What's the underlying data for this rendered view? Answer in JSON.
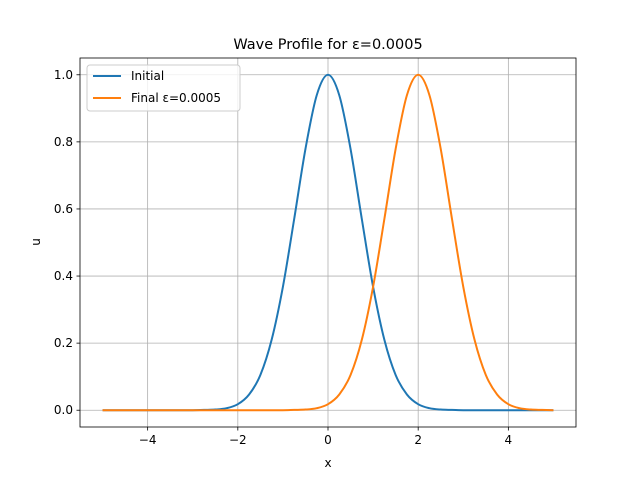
{
  "chart_data": {
    "type": "line",
    "title": "Wave Profile for ε=0.0005",
    "xlabel": "x",
    "ylabel": "u",
    "xlim": [
      -5.5,
      5.5
    ],
    "ylim": [
      -0.05,
      1.05
    ],
    "xticks": [
      {
        "value": -4,
        "label": "−4"
      },
      {
        "value": -2,
        "label": "−2"
      },
      {
        "value": 0,
        "label": "0"
      },
      {
        "value": 2,
        "label": "2"
      },
      {
        "value": 4,
        "label": "4"
      }
    ],
    "yticks": [
      {
        "value": 0.0,
        "label": "0.0"
      },
      {
        "value": 0.2,
        "label": "0.2"
      },
      {
        "value": 0.4,
        "label": "0.4"
      },
      {
        "value": 0.6,
        "label": "0.6"
      },
      {
        "value": 0.8,
        "label": "0.8"
      },
      {
        "value": 1.0,
        "label": "1.0"
      }
    ],
    "grid": true,
    "legend_position": "top-left",
    "x": [
      -5,
      -4.5,
      -4,
      -3.5,
      -3,
      -2.75,
      -2.5,
      -2.25,
      -2,
      -1.75,
      -1.5,
      -1.25,
      -1,
      -0.75,
      -0.5,
      -0.25,
      0,
      0.25,
      0.5,
      0.75,
      1,
      1.25,
      1.5,
      1.75,
      2,
      2.25,
      2.5,
      2.75,
      3,
      3.25,
      3.5,
      3.75,
      4,
      4.25,
      4.5,
      4.75,
      5
    ],
    "series": [
      {
        "name": "Initial",
        "color": "#1f77b4",
        "values": [
          0.0,
          0.0,
          0.0,
          0.0,
          0.0,
          0.001,
          0.002,
          0.006,
          0.018,
          0.047,
          0.105,
          0.21,
          0.368,
          0.57,
          0.779,
          0.939,
          1.0,
          0.939,
          0.779,
          0.57,
          0.368,
          0.21,
          0.105,
          0.047,
          0.018,
          0.006,
          0.002,
          0.001,
          0.0,
          0.0,
          0.0,
          0.0,
          0.0,
          0.0,
          0.0,
          0.0,
          0.0
        ]
      },
      {
        "name": "Final ε=0.0005",
        "color": "#ff7f0e",
        "values": [
          0.0,
          0.0,
          0.0,
          0.0,
          0.0,
          0.0,
          0.0,
          0.0,
          0.0,
          0.0,
          0.0,
          0.0,
          0.0,
          0.001,
          0.002,
          0.006,
          0.018,
          0.047,
          0.105,
          0.21,
          0.368,
          0.57,
          0.779,
          0.939,
          1.0,
          0.939,
          0.779,
          0.57,
          0.368,
          0.21,
          0.105,
          0.047,
          0.018,
          0.006,
          0.002,
          0.001,
          0.0
        ]
      }
    ]
  }
}
